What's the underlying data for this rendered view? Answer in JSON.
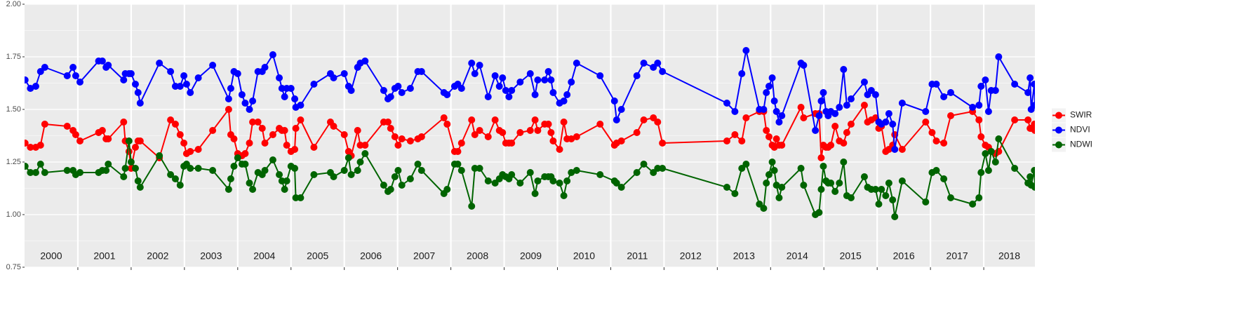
{
  "chart_data": {
    "type": "line",
    "x": [
      2000.01,
      2000.11,
      2000.21,
      2000.3,
      2000.38,
      2000.8,
      2000.91,
      2000.96,
      2001.04,
      2001.39,
      2001.46,
      2001.53,
      2001.57,
      2001.86,
      2001.89,
      2001.96,
      2002.0,
      2002.08,
      2002.13,
      2002.17,
      2002.53,
      2002.74,
      2002.83,
      2002.92,
      2002.99,
      2003.04,
      2003.11,
      2003.26,
      2003.53,
      2003.83,
      2003.87,
      2003.93,
      2004.0,
      2004.08,
      2004.14,
      2004.22,
      2004.28,
      2004.38,
      2004.46,
      2004.51,
      2004.66,
      2004.78,
      2004.83,
      2004.88,
      2004.92,
      2005.0,
      2005.07,
      2005.09,
      2005.18,
      2005.43,
      2005.74,
      2005.8,
      2006.0,
      2006.08,
      2006.13,
      2006.25,
      2006.3,
      2006.39,
      2006.74,
      2006.82,
      2006.87,
      2006.95,
      2007.01,
      2007.08,
      2007.24,
      2007.38,
      2007.45,
      2007.87,
      2007.93,
      2008.07,
      2008.13,
      2008.2,
      2008.39,
      2008.45,
      2008.54,
      2008.7,
      2008.83,
      2008.91,
      2008.97,
      2009.03,
      2009.09,
      2009.14,
      2009.3,
      2009.49,
      2009.58,
      2009.63,
      2009.76,
      2009.83,
      2009.88,
      2009.92,
      2010.04,
      2010.12,
      2010.18,
      2010.26,
      2010.36,
      2010.8,
      2011.07,
      2011.11,
      2011.2,
      2011.49,
      2011.62,
      2011.8,
      2011.88,
      2011.97,
      2013.18,
      2013.33,
      2013.46,
      2013.54,
      2013.79,
      2013.87,
      2013.92,
      2013.97,
      2014.03,
      2014.07,
      2014.11,
      2014.16,
      2014.21,
      2014.57,
      2014.62,
      2014.84,
      2014.91,
      2014.95,
      2014.99,
      2015.04,
      2015.08,
      2015.13,
      2015.21,
      2015.29,
      2015.37,
      2015.43,
      2015.51,
      2015.76,
      2015.82,
      2015.89,
      2015.97,
      2016.03,
      2016.08,
      2016.16,
      2016.22,
      2016.29,
      2016.33,
      2016.47,
      2016.91,
      2017.03,
      2017.11,
      2017.25,
      2017.38,
      2017.79,
      2017.91,
      2017.95,
      2018.03,
      2018.09,
      2018.14,
      2018.22,
      2018.28,
      2018.58,
      2018.83,
      2018.87,
      2018.89,
      2018.95,
      2018.96
    ],
    "series": [
      {
        "name": "SWIR",
        "color": "#ff0000",
        "values": [
          1.34,
          1.32,
          1.32,
          1.33,
          1.43,
          1.42,
          1.4,
          1.38,
          1.35,
          1.39,
          1.4,
          1.36,
          1.36,
          1.44,
          1.35,
          1.3,
          1.22,
          1.32,
          1.35,
          1.35,
          1.27,
          1.45,
          1.43,
          1.38,
          1.34,
          1.29,
          1.3,
          1.31,
          1.4,
          1.5,
          1.38,
          1.36,
          1.29,
          1.28,
          1.29,
          1.34,
          1.44,
          1.44,
          1.41,
          1.34,
          1.38,
          1.41,
          1.4,
          1.4,
          1.33,
          1.3,
          1.31,
          1.41,
          1.45,
          1.32,
          1.44,
          1.42,
          1.38,
          1.3,
          1.28,
          1.4,
          1.33,
          1.33,
          1.44,
          1.44,
          1.41,
          1.37,
          1.33,
          1.36,
          1.35,
          1.36,
          1.37,
          1.46,
          1.43,
          1.3,
          1.3,
          1.34,
          1.45,
          1.38,
          1.4,
          1.37,
          1.45,
          1.4,
          1.39,
          1.34,
          1.34,
          1.34,
          1.39,
          1.4,
          1.45,
          1.4,
          1.43,
          1.43,
          1.39,
          1.35,
          1.31,
          1.44,
          1.36,
          1.36,
          1.37,
          1.43,
          1.33,
          1.34,
          1.35,
          1.39,
          1.45,
          1.46,
          1.44,
          1.34,
          1.35,
          1.38,
          1.35,
          1.46,
          1.49,
          1.49,
          1.4,
          1.37,
          1.33,
          1.32,
          1.36,
          1.33,
          1.33,
          1.51,
          1.46,
          1.48,
          1.48,
          1.27,
          1.33,
          1.32,
          1.32,
          1.33,
          1.42,
          1.35,
          1.34,
          1.39,
          1.43,
          1.52,
          1.44,
          1.45,
          1.46,
          1.41,
          1.42,
          1.3,
          1.31,
          1.33,
          1.38,
          1.31,
          1.44,
          1.39,
          1.35,
          1.34,
          1.47,
          1.49,
          1.45,
          1.37,
          1.33,
          1.32,
          1.3,
          1.29,
          1.3,
          1.45,
          1.45,
          1.41,
          1.41,
          1.43,
          1.4
        ]
      },
      {
        "name": "NDVI",
        "color": "#0000ff",
        "values": [
          1.64,
          1.6,
          1.61,
          1.68,
          1.7,
          1.66,
          1.7,
          1.66,
          1.63,
          1.73,
          1.73,
          1.7,
          1.71,
          1.64,
          1.67,
          1.67,
          1.67,
          1.62,
          1.58,
          1.53,
          1.72,
          1.68,
          1.61,
          1.61,
          1.66,
          1.62,
          1.58,
          1.65,
          1.71,
          1.55,
          1.6,
          1.68,
          1.67,
          1.57,
          1.53,
          1.5,
          1.54,
          1.68,
          1.68,
          1.7,
          1.76,
          1.65,
          1.6,
          1.56,
          1.6,
          1.6,
          1.55,
          1.51,
          1.52,
          1.62,
          1.67,
          1.65,
          1.67,
          1.61,
          1.59,
          1.7,
          1.72,
          1.73,
          1.59,
          1.55,
          1.56,
          1.6,
          1.61,
          1.58,
          1.6,
          1.68,
          1.68,
          1.58,
          1.57,
          1.61,
          1.62,
          1.6,
          1.72,
          1.67,
          1.71,
          1.56,
          1.66,
          1.61,
          1.65,
          1.59,
          1.56,
          1.59,
          1.63,
          1.67,
          1.57,
          1.64,
          1.64,
          1.68,
          1.64,
          1.58,
          1.53,
          1.54,
          1.57,
          1.63,
          1.72,
          1.66,
          1.54,
          1.45,
          1.5,
          1.66,
          1.72,
          1.7,
          1.72,
          1.68,
          1.53,
          1.49,
          1.67,
          1.78,
          1.5,
          1.5,
          1.58,
          1.61,
          1.65,
          1.54,
          1.49,
          1.44,
          1.47,
          1.72,
          1.71,
          1.4,
          1.47,
          1.54,
          1.58,
          1.49,
          1.47,
          1.49,
          1.48,
          1.51,
          1.69,
          1.52,
          1.55,
          1.63,
          1.57,
          1.59,
          1.57,
          1.44,
          1.43,
          1.44,
          1.48,
          1.43,
          1.31,
          1.53,
          1.49,
          1.62,
          1.62,
          1.56,
          1.58,
          1.51,
          1.52,
          1.61,
          1.64,
          1.49,
          1.59,
          1.59,
          1.75,
          1.62,
          1.58,
          1.65,
          1.5,
          1.62,
          1.52
        ]
      },
      {
        "name": "NDWI",
        "color": "#006400",
        "values": [
          1.23,
          1.2,
          1.2,
          1.24,
          1.2,
          1.21,
          1.21,
          1.19,
          1.2,
          1.2,
          1.21,
          1.21,
          1.24,
          1.18,
          1.22,
          1.35,
          1.25,
          1.22,
          1.16,
          1.13,
          1.28,
          1.19,
          1.17,
          1.14,
          1.23,
          1.24,
          1.22,
          1.22,
          1.21,
          1.12,
          1.17,
          1.23,
          1.27,
          1.24,
          1.24,
          1.15,
          1.12,
          1.2,
          1.19,
          1.21,
          1.26,
          1.19,
          1.16,
          1.12,
          1.16,
          1.23,
          1.22,
          1.08,
          1.08,
          1.19,
          1.2,
          1.18,
          1.21,
          1.27,
          1.19,
          1.21,
          1.25,
          1.29,
          1.14,
          1.11,
          1.12,
          1.18,
          1.21,
          1.14,
          1.17,
          1.24,
          1.21,
          1.1,
          1.12,
          1.24,
          1.24,
          1.21,
          1.04,
          1.22,
          1.22,
          1.16,
          1.15,
          1.17,
          1.19,
          1.18,
          1.17,
          1.19,
          1.15,
          1.2,
          1.1,
          1.16,
          1.18,
          1.18,
          1.18,
          1.16,
          1.15,
          1.09,
          1.16,
          1.2,
          1.21,
          1.19,
          1.16,
          1.15,
          1.13,
          1.2,
          1.24,
          1.2,
          1.22,
          1.22,
          1.13,
          1.1,
          1.22,
          1.24,
          1.05,
          1.03,
          1.15,
          1.19,
          1.25,
          1.21,
          1.14,
          1.08,
          1.13,
          1.22,
          1.14,
          1.0,
          1.01,
          1.12,
          1.23,
          1.16,
          1.15,
          1.15,
          1.11,
          1.15,
          1.25,
          1.09,
          1.08,
          1.18,
          1.13,
          1.12,
          1.12,
          1.05,
          1.12,
          1.09,
          1.15,
          1.07,
          0.99,
          1.16,
          1.06,
          1.2,
          1.21,
          1.17,
          1.08,
          1.05,
          1.08,
          1.2,
          1.29,
          1.21,
          1.3,
          1.25,
          1.36,
          1.22,
          1.15,
          1.18,
          1.14,
          1.21,
          1.13
        ]
      }
    ],
    "xlim": [
      2000,
      2018.96
    ],
    "xticks": [
      2001,
      2002,
      2003,
      2004,
      2005,
      2006,
      2007,
      2008,
      2009,
      2010,
      2011,
      2012,
      2013,
      2014,
      2015,
      2016,
      2017,
      2018
    ],
    "year_labels": [
      "2000",
      "2001",
      "2002",
      "2003",
      "2004",
      "2005",
      "2006",
      "2007",
      "2008",
      "2009",
      "2010",
      "2011",
      "2012",
      "2013",
      "2014",
      "2015",
      "2016",
      "2017",
      "2018"
    ],
    "ylim": [
      0.75,
      2.0
    ],
    "yticks": [
      {
        "value": 0.75,
        "label": "0.75"
      },
      {
        "value": 1.0,
        "label": "1.00"
      },
      {
        "value": 1.25,
        "label": "1.25"
      },
      {
        "value": 1.5,
        "label": "1.50"
      },
      {
        "value": 1.75,
        "label": "1.75"
      },
      {
        "value": 2.0,
        "label": "2.00"
      }
    ],
    "grid": true,
    "legend": "right"
  }
}
